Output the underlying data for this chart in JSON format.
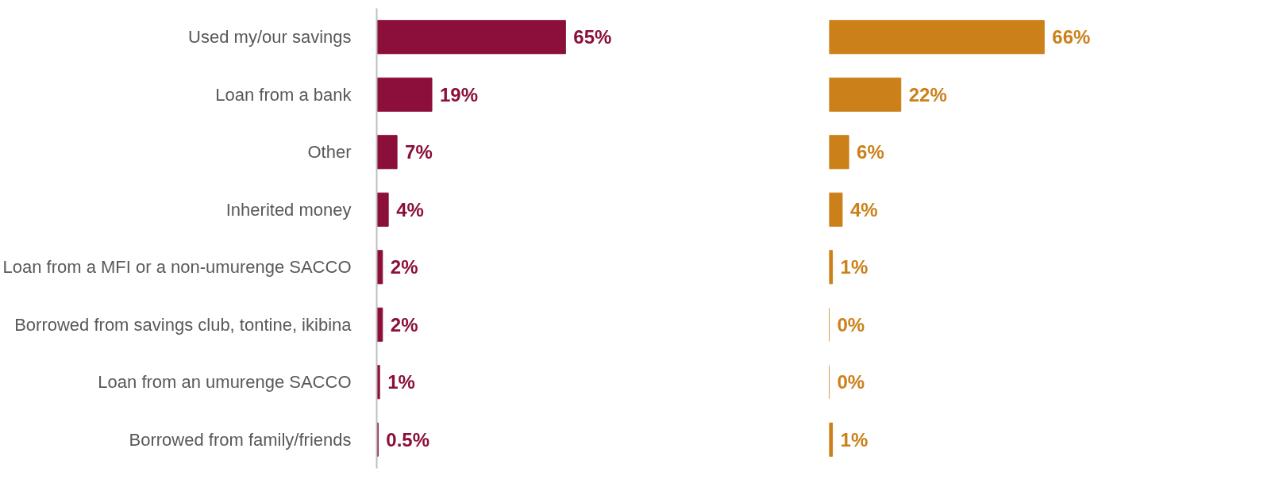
{
  "chart_data": [
    {
      "type": "bar",
      "orientation": "horizontal",
      "categories": [
        "Used my/our savings",
        "Loan from a bank",
        "Other",
        "Inherited money",
        "Loan from a MFI or a non-umurenge SACCO",
        "Borrowed from savings club, tontine, ikibina",
        "Loan from an umurenge SACCO",
        "Borrowed from family/friends"
      ],
      "series": [
        {
          "color": "#8b0f3a",
          "values": [
            65,
            19,
            7,
            4,
            2,
            2,
            1,
            0.5
          ],
          "value_labels": [
            "65%",
            "19%",
            "7%",
            "4%",
            "2%",
            "2%",
            "1%",
            "0.5%"
          ]
        }
      ],
      "tick_labels": "y",
      "grid": false
    },
    {
      "type": "bar",
      "orientation": "horizontal",
      "categories": [
        null,
        null,
        null,
        null,
        null,
        null,
        null,
        null
      ],
      "series": [
        {
          "color": "#cc8019",
          "values": [
            66,
            22,
            6,
            4,
            1,
            0,
            0,
            1
          ],
          "value_labels": [
            "66%",
            "22%",
            "6%",
            "4%",
            "1%",
            "0%",
            "0%",
            "1%"
          ]
        }
      ],
      "tick_labels": false,
      "grid": false
    }
  ]
}
